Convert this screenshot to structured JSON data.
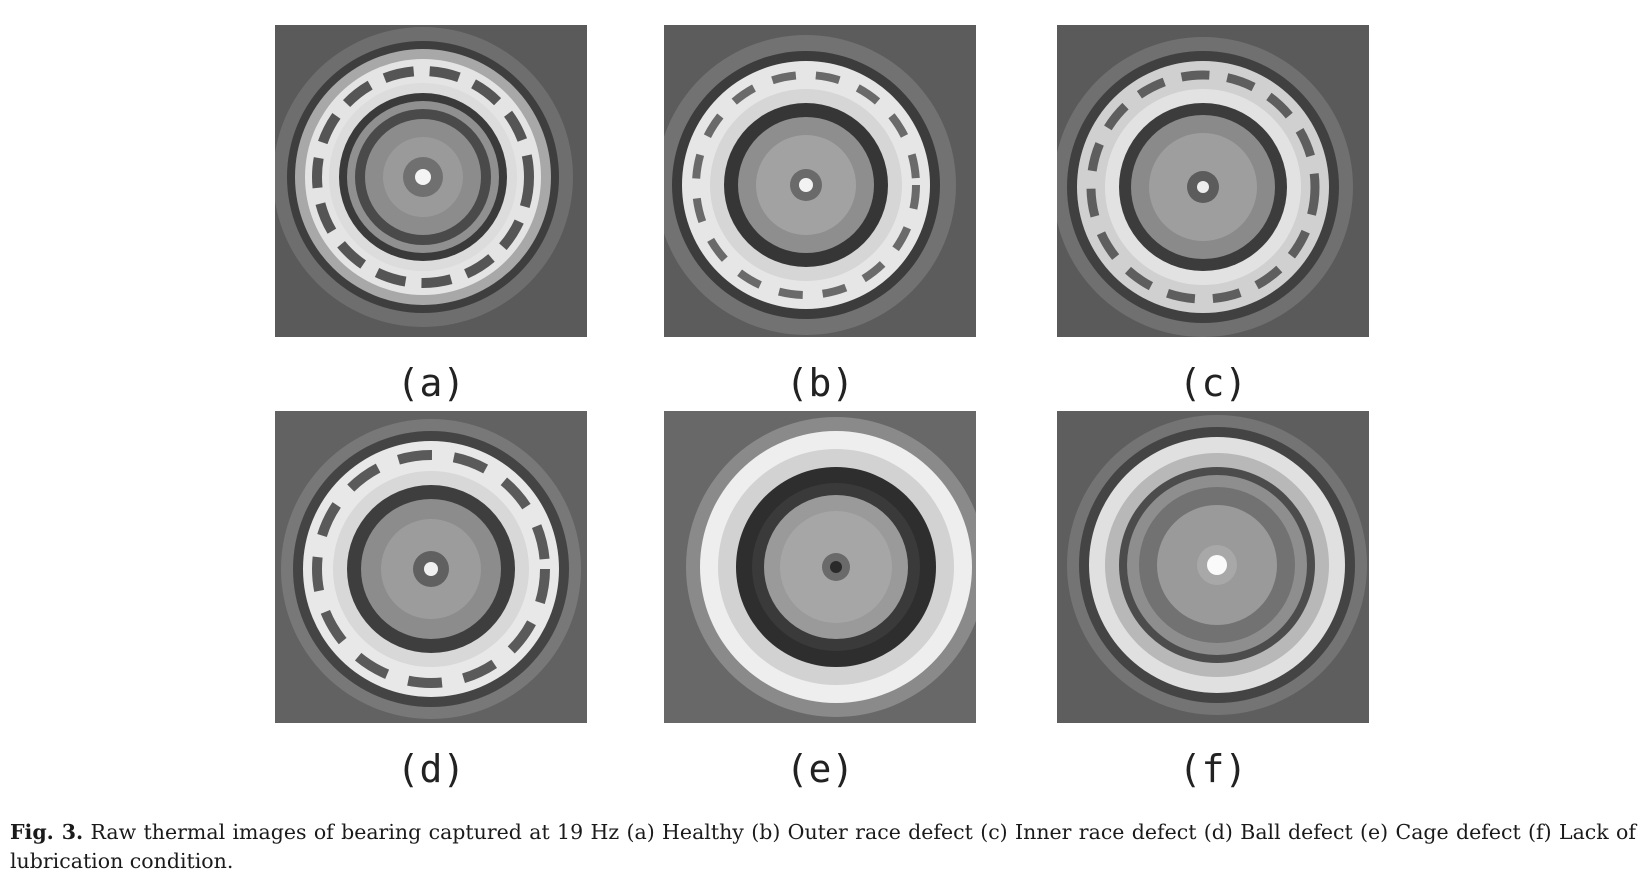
{
  "figure": {
    "panels": [
      {
        "label": "(a)",
        "condition": "Healthy"
      },
      {
        "label": "(b)",
        "condition": "Outer race defect"
      },
      {
        "label": "(c)",
        "condition": "Inner race defect"
      },
      {
        "label": "(d)",
        "condition": "Ball defect"
      },
      {
        "label": "(e)",
        "condition": "Cage defect"
      },
      {
        "label": "(f)",
        "condition": "Lack of lubrication condition"
      }
    ],
    "caption": {
      "label": "Fig. 3.",
      "text": "Raw thermal images of bearing captured at 19 Hz (a) Healthy (b) Outer race defect (c) Inner race defect (d) Ball defect (e) Cage defect (f) Lack of lubrication condition."
    }
  },
  "colors": {
    "background": "#ffffff",
    "image_dark": "#3a3a3a",
    "image_mid": "#8a8a8a",
    "image_light": "#e8e8e8"
  }
}
